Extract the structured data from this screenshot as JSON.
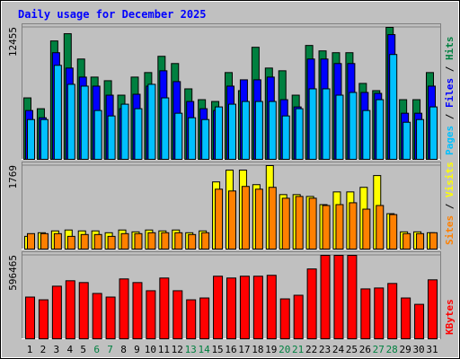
{
  "chart_data": [
    {
      "type": "bar",
      "title": "Daily usage for December 2025",
      "categories": [
        "1",
        "2",
        "3",
        "4",
        "5",
        "6",
        "7",
        "8",
        "9",
        "10",
        "11",
        "12",
        "13",
        "14",
        "15",
        "16",
        "17",
        "18",
        "19",
        "20",
        "21",
        "22",
        "23",
        "24",
        "25",
        "26",
        "27",
        "28",
        "29",
        "30",
        "31"
      ],
      "category_colors": [
        "#000000",
        "#000000",
        "#000000",
        "#000000",
        "#000000",
        "#008040",
        "#008040",
        "#000000",
        "#000000",
        "#000000",
        "#000000",
        "#000000",
        "#008040",
        "#008040",
        "#000000",
        "#000000",
        "#000000",
        "#000000",
        "#000000",
        "#008040",
        "#008040",
        "#000000",
        "#000000",
        "#000000",
        "#000000",
        "#000000",
        "#008040",
        "#008040",
        "#000000",
        "#000000",
        "#000000"
      ],
      "separator": " / ",
      "ylim": [
        0,
        12455
      ],
      "yticks": [
        12455
      ],
      "series": [
        {
          "name": "Hits",
          "color": "#008040",
          "values": [
            5800,
            4777,
            11174,
            11857,
            9468,
            7762,
            7421,
            6056,
            7762,
            8189,
            9724,
            9042,
            6653,
            5630,
            5459,
            8189,
            6483,
            10577,
            8615,
            8359,
            6056,
            10748,
            10236,
            10065,
            10065,
            7165,
            6483,
            12455,
            5630,
            5630,
            8189
          ]
        },
        {
          "name": "Files",
          "color": "#0000ff",
          "values": [
            4606,
            3924,
            10065,
            8615,
            7762,
            6909,
            6056,
            4777,
            6142,
            6909,
            8359,
            7336,
            5459,
            4777,
            4606,
            6909,
            7506,
            7506,
            7762,
            5630,
            4947,
            9468,
            9468,
            9042,
            9042,
            6312,
            6227,
            11771,
            4350,
            4350,
            6909
          ]
        },
        {
          "name": "Pages",
          "color": "#00c0ff",
          "values": [
            3753,
            3753,
            8871,
            7080,
            6909,
            4606,
            4094,
            5203,
            4777,
            7080,
            5800,
            4350,
            3924,
            3753,
            4947,
            5203,
            5459,
            5459,
            5459,
            4094,
            4777,
            6653,
            6653,
            6056,
            6312,
            4606,
            5630,
            9895,
            3497,
            3753,
            4947
          ]
        }
      ]
    },
    {
      "type": "bar",
      "separator": " / ",
      "ylim": [
        0,
        1769
      ],
      "yticks": [
        1769
      ],
      "series": [
        {
          "name": "Visits",
          "color": "#ffff00",
          "values": [
            269,
            346,
            385,
            404,
            385,
            385,
            346,
            404,
            365,
            404,
            385,
            404,
            346,
            385,
            1423,
            1673,
            1673,
            1365,
            1769,
            1154,
            1154,
            1115,
            942,
            1211,
            1211,
            1308,
            1558,
            750,
            365,
            365,
            346
          ]
        },
        {
          "name": "Sites",
          "color": "#ff8000",
          "values": [
            327,
            327,
            327,
            269,
            308,
            308,
            269,
            327,
            327,
            346,
            346,
            346,
            308,
            346,
            1269,
            1231,
            1327,
            1269,
            1308,
            1077,
            1115,
            1077,
            923,
            942,
            981,
            846,
            923,
            731,
            327,
            327,
            346
          ]
        }
      ]
    },
    {
      "type": "bar",
      "separator": " / ",
      "ylim": [
        0,
        596465
      ],
      "yticks": [
        596465
      ],
      "series": [
        {
          "name": "KBytes",
          "color": "#ff0000",
          "values": [
            298218,
            278769,
            376014,
            414912,
            401946,
            324150,
            298218,
            427878,
            401946,
            343599,
            434361,
            343599,
            278769,
            291735,
            447327,
            434361,
            447327,
            447327,
            453810,
            285252,
            311184,
            499191,
            596465,
            596465,
            596465,
            356565,
            363048,
            395463,
            291735,
            246354,
            421395
          ]
        }
      ]
    }
  ]
}
